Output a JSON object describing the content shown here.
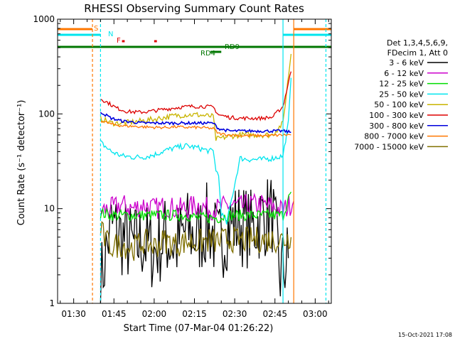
{
  "chart_data": {
    "type": "line",
    "title": "RHESSI Observing Summary Count Rates",
    "xlabel": "Start Time (07-Mar-04 01:26:22)",
    "ylabel": "Count Rate (s⁻¹ detector⁻¹)",
    "y_scale": "log",
    "ylim": [
      1,
      1000
    ],
    "xlim": [
      "01:24",
      "03:06"
    ],
    "x_ticks": [
      "01:30",
      "01:45",
      "02:00",
      "02:15",
      "02:30",
      "02:45",
      "03:00"
    ],
    "y_ticks": [
      "1",
      "10",
      "100",
      "1000"
    ],
    "grid": false,
    "legend_position": "right",
    "legend_header": [
      "Det 1,3,4,5,6,9,",
      "FDecim 1, Att 0"
    ],
    "footer_date": "15-Oct-2021 17:08",
    "series": [
      {
        "name": "3 - 6 keV",
        "color": "#000000",
        "points": [
          [
            "01:40",
            1.5
          ],
          [
            "01:42",
            3.5
          ],
          [
            "01:44",
            6.5
          ],
          [
            "01:48",
            5
          ],
          [
            "01:52",
            4
          ],
          [
            "01:56",
            4.5
          ],
          [
            "02:00",
            3.5
          ],
          [
            "02:04",
            5
          ],
          [
            "02:08",
            4
          ],
          [
            "02:12",
            6
          ],
          [
            "02:16",
            5
          ],
          [
            "02:20",
            7
          ],
          [
            "02:24",
            4
          ],
          [
            "02:28",
            7
          ],
          [
            "02:32",
            7
          ],
          [
            "02:36",
            6
          ],
          [
            "02:40",
            8
          ],
          [
            "02:44",
            9
          ],
          [
            "02:47",
            2
          ],
          [
            "02:50",
            3
          ]
        ]
      },
      {
        "name": "6 - 12 keV",
        "color": "#cc00cc",
        "points": [
          [
            "01:40",
            9.5
          ],
          [
            "01:44",
            10
          ],
          [
            "01:48",
            11
          ],
          [
            "01:52",
            10
          ],
          [
            "01:56",
            11
          ],
          [
            "02:00",
            10
          ],
          [
            "02:04",
            10.5
          ],
          [
            "02:08",
            10
          ],
          [
            "02:12",
            10
          ],
          [
            "02:16",
            11
          ],
          [
            "02:20",
            10
          ],
          [
            "02:24",
            10
          ],
          [
            "02:28",
            11
          ],
          [
            "02:32",
            10.5
          ],
          [
            "02:36",
            11
          ],
          [
            "02:40",
            11
          ],
          [
            "02:44",
            10.5
          ],
          [
            "02:48",
            9.5
          ],
          [
            "02:52",
            12
          ]
        ]
      },
      {
        "name": "12 - 25 keV",
        "color": "#00dd00",
        "points": [
          [
            "01:40",
            9
          ],
          [
            "01:44",
            8.5
          ],
          [
            "01:48",
            8.5
          ],
          [
            "01:52",
            8.5
          ],
          [
            "01:56",
            8.5
          ],
          [
            "02:00",
            8.5
          ],
          [
            "02:04",
            8.5
          ],
          [
            "02:08",
            8.5
          ],
          [
            "02:12",
            8.5
          ],
          [
            "02:16",
            8
          ],
          [
            "02:20",
            8
          ],
          [
            "02:24",
            8
          ],
          [
            "02:28",
            8.5
          ],
          [
            "02:32",
            8.5
          ],
          [
            "02:36",
            8.5
          ],
          [
            "02:40",
            8.5
          ],
          [
            "02:44",
            8.5
          ],
          [
            "02:48",
            8.5
          ],
          [
            "02:51",
            15
          ]
        ]
      },
      {
        "name": "25 - 50 keV",
        "color": "#00e5ee",
        "points": [
          [
            "01:40",
            50
          ],
          [
            "01:44",
            40
          ],
          [
            "01:48",
            36
          ],
          [
            "01:52",
            35
          ],
          [
            "01:56",
            35
          ],
          [
            "02:00",
            37
          ],
          [
            "02:04",
            41
          ],
          [
            "02:08",
            44
          ],
          [
            "02:12",
            46
          ],
          [
            "02:16",
            44
          ],
          [
            "02:20",
            41
          ],
          [
            "02:22",
            40
          ],
          [
            "02:23",
            26
          ],
          [
            "02:24",
            22
          ],
          [
            "02:25",
            9
          ],
          [
            "02:27",
            7
          ],
          [
            "02:32",
            34
          ],
          [
            "02:36",
            33
          ],
          [
            "02:40",
            33
          ],
          [
            "02:44",
            34
          ],
          [
            "02:48",
            36
          ],
          [
            "02:50",
            80
          ],
          [
            "02:51",
            240
          ]
        ]
      },
      {
        "name": "50 - 100 keV",
        "color": "#c8b400",
        "points": [
          [
            "01:40",
            90
          ],
          [
            "01:44",
            80
          ],
          [
            "01:48",
            80
          ],
          [
            "01:52",
            82
          ],
          [
            "01:56",
            85
          ],
          [
            "02:00",
            88
          ],
          [
            "02:04",
            92
          ],
          [
            "02:08",
            96
          ],
          [
            "02:12",
            98
          ],
          [
            "02:16",
            98
          ],
          [
            "02:20",
            95
          ],
          [
            "02:22",
            94
          ],
          [
            "02:23",
            54
          ],
          [
            "02:28",
            58
          ],
          [
            "02:32",
            60
          ],
          [
            "02:36",
            60
          ],
          [
            "02:40",
            60
          ],
          [
            "02:44",
            60
          ],
          [
            "02:48",
            80
          ],
          [
            "02:51",
            430
          ]
        ]
      },
      {
        "name": "100 - 300 keV",
        "color": "#dd0000",
        "points": [
          [
            "01:40",
            145
          ],
          [
            "01:43",
            130
          ],
          [
            "01:46",
            115
          ],
          [
            "01:50",
            106
          ],
          [
            "01:54",
            104
          ],
          [
            "01:58",
            106
          ],
          [
            "02:02",
            110
          ],
          [
            "02:06",
            114
          ],
          [
            "02:10",
            118
          ],
          [
            "02:14",
            120
          ],
          [
            "02:18",
            120
          ],
          [
            "02:22",
            118
          ],
          [
            "02:24",
            98
          ],
          [
            "02:28",
            92
          ],
          [
            "02:32",
            90
          ],
          [
            "02:36",
            90
          ],
          [
            "02:40",
            90
          ],
          [
            "02:44",
            92
          ],
          [
            "02:48",
            120
          ],
          [
            "02:51",
            280
          ]
        ]
      },
      {
        "name": "300 - 800 keV",
        "color": "#0000dd",
        "points": [
          [
            "01:40",
            105
          ],
          [
            "01:44",
            90
          ],
          [
            "01:48",
            84
          ],
          [
            "01:52",
            82
          ],
          [
            "01:56",
            80
          ],
          [
            "02:00",
            80
          ],
          [
            "02:04",
            80
          ],
          [
            "02:08",
            80
          ],
          [
            "02:12",
            80
          ],
          [
            "02:16",
            80
          ],
          [
            "02:20",
            80
          ],
          [
            "02:22",
            80
          ],
          [
            "02:24",
            70
          ],
          [
            "02:28",
            66
          ],
          [
            "02:32",
            66
          ],
          [
            "02:36",
            66
          ],
          [
            "02:40",
            66
          ],
          [
            "02:44",
            66
          ],
          [
            "02:48",
            66
          ],
          [
            "02:51",
            64
          ]
        ]
      },
      {
        "name": "800 - 7000 keV",
        "color": "#ff7700",
        "points": [
          [
            "01:40",
            85
          ],
          [
            "01:44",
            78
          ],
          [
            "01:48",
            75
          ],
          [
            "01:52",
            74
          ],
          [
            "01:56",
            73
          ],
          [
            "02:00",
            72
          ],
          [
            "02:04",
            72
          ],
          [
            "02:08",
            73
          ],
          [
            "02:12",
            72
          ],
          [
            "02:16",
            72
          ],
          [
            "02:20",
            71
          ],
          [
            "02:22",
            70
          ],
          [
            "02:24",
            62
          ],
          [
            "02:28",
            60
          ],
          [
            "02:32",
            59
          ],
          [
            "02:36",
            59
          ],
          [
            "02:40",
            59
          ],
          [
            "02:44",
            59
          ],
          [
            "02:48",
            60
          ],
          [
            "02:51",
            60
          ]
        ]
      },
      {
        "name": "7000 - 15000 keV",
        "color": "#807000",
        "points": [
          [
            "01:40",
            6
          ],
          [
            "01:42",
            4.5
          ],
          [
            "01:44",
            4
          ],
          [
            "01:48",
            4.2
          ],
          [
            "01:52",
            3.8
          ],
          [
            "01:56",
            4.5
          ],
          [
            "02:00",
            4
          ],
          [
            "02:04",
            4.6
          ],
          [
            "02:08",
            4.2
          ],
          [
            "02:12",
            4.5
          ],
          [
            "02:16",
            4.4
          ],
          [
            "02:20",
            4.6
          ],
          [
            "02:24",
            4.5
          ],
          [
            "02:28",
            4.8
          ],
          [
            "02:32",
            4.6
          ],
          [
            "02:36",
            4.7
          ],
          [
            "02:40",
            4.7
          ],
          [
            "02:44",
            4.7
          ],
          [
            "02:48",
            4.7
          ],
          [
            "02:51",
            5
          ]
        ]
      }
    ],
    "annotations": [
      {
        "label": "S",
        "color": "#ff7700"
      },
      {
        "label": "N",
        "color": "#00e5ee"
      },
      {
        "label": "F",
        "color": "#dd0000"
      },
      {
        "label": "RD9",
        "color": "#007700"
      },
      {
        "label": "RD4",
        "color": "#007700"
      }
    ],
    "vertical_lines": [
      {
        "time": "01:37",
        "color": "#ff7700",
        "style": "dashed"
      },
      {
        "time": "01:40",
        "color": "#00e5ee",
        "style": "dashed"
      },
      {
        "time": "02:48",
        "color": "#00e5ee",
        "style": "solid"
      },
      {
        "time": "02:52",
        "color": "#ff7700",
        "style": "solid"
      },
      {
        "time": "03:04",
        "color": "#00e5ee",
        "style": "dashed"
      }
    ],
    "intervals": {
      "saa": [
        [
          "01:24",
          "01:37"
        ],
        [
          "02:52",
          "03:06"
        ]
      ],
      "night": [
        [
          "01:24",
          "01:40"
        ],
        [
          "02:48",
          "03:06"
        ]
      ],
      "flare": [
        [
          "01:48",
          "01:49"
        ],
        [
          "02:00",
          "02:01"
        ]
      ],
      "rd9": [
        [
          "01:24",
          "03:06"
        ]
      ],
      "rd4": [
        [
          "02:21",
          "02:25"
        ]
      ]
    }
  }
}
